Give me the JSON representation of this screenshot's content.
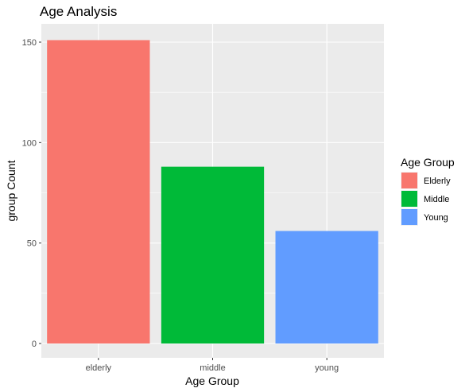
{
  "chart_data": {
    "type": "bar",
    "title": "Age Analysis",
    "xlabel": "Age Group",
    "ylabel": "group Count",
    "categories": [
      "elderly",
      "middle",
      "young"
    ],
    "values": [
      151,
      88,
      56
    ],
    "colors": [
      "#F8766D",
      "#00BA38",
      "#619CFF"
    ],
    "ylim": [
      0,
      158
    ],
    "yticks": [
      0,
      50,
      100,
      150
    ],
    "ytick_labels": [
      "0",
      "50",
      "100",
      "150"
    ],
    "grid": true,
    "panel_background": "#EBEBEB",
    "gridline_color": "#FFFFFF",
    "legend": {
      "title": "Age Group",
      "position": "right",
      "entries": [
        {
          "label": "Elderly",
          "color": "#F8766D"
        },
        {
          "label": "Middle",
          "color": "#00BA38"
        },
        {
          "label": "Young",
          "color": "#619CFF"
        }
      ]
    }
  }
}
